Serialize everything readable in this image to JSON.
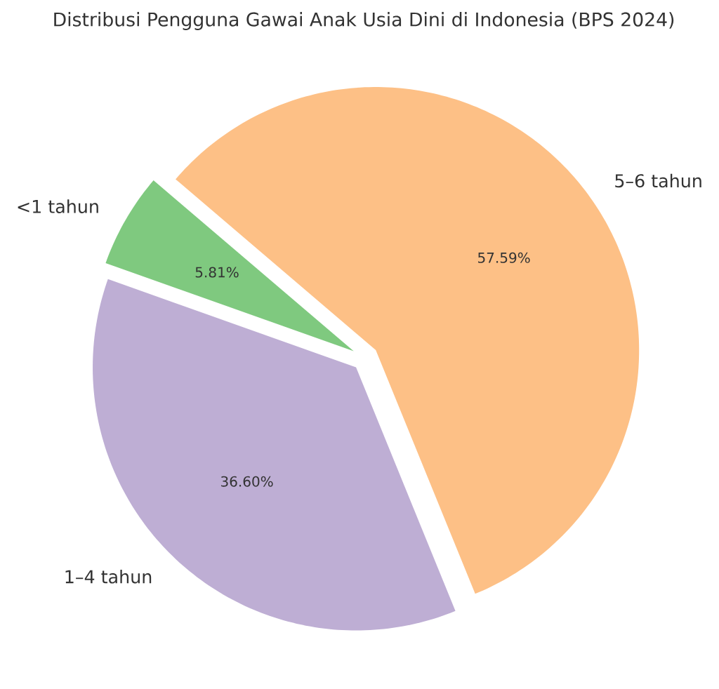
{
  "chart_data": {
    "type": "pie",
    "title": "Distribusi Pengguna Gawai Anak Usia Dini di Indonesia (BPS 2024)",
    "categories": [
      "<1 tahun",
      "1–4 tahun",
      "5–6 tahun"
    ],
    "values": [
      5.81,
      36.6,
      57.59
    ],
    "colors": [
      "#7fc97f",
      "#beaed4",
      "#fdc086"
    ],
    "value_labels": [
      "5.81%",
      "36.60%",
      "57.59%"
    ]
  }
}
